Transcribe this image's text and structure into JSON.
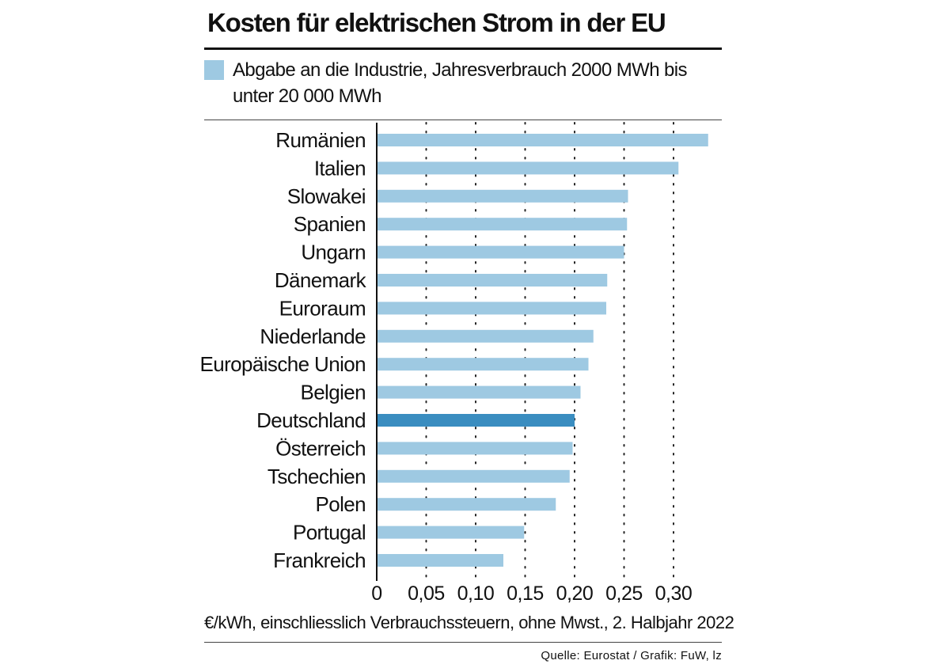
{
  "header": {
    "title": "Kosten für elektrischen Strom in der EU"
  },
  "legend": {
    "label": "Abgabe an die Industrie, Jahresverbrauch 2000 MWh bis unter 20 000 MWh",
    "color": "#9ec9e2"
  },
  "chart_data": {
    "type": "bar",
    "orientation": "horizontal",
    "title": "Kosten für elektrischen Strom in der EU",
    "xlabel": "€/kWh, einschliesslich Verbrauchssteuern, ohne Mwst., 2. Halbjahr 2022",
    "ylabel": "",
    "xlim": [
      0,
      0.35
    ],
    "grid": "vertical dotted",
    "ticks": [
      {
        "value": 0,
        "label": "0"
      },
      {
        "value": 0.05,
        "label": "0,05"
      },
      {
        "value": 0.1,
        "label": "0,10"
      },
      {
        "value": 0.15,
        "label": "0,15"
      },
      {
        "value": 0.2,
        "label": "0,20"
      },
      {
        "value": 0.25,
        "label": "0,25"
      },
      {
        "value": 0.3,
        "label": "0,30"
      }
    ],
    "categories": [
      "Rumänien",
      "Italien",
      "Slowakei",
      "Spanien",
      "Ungarn",
      "Dänemark",
      "Euroraum",
      "Niederlande",
      "Europäische Union",
      "Belgien",
      "Deutschland",
      "Österreich",
      "Tschechien",
      "Polen",
      "Portugal",
      "Frankreich"
    ],
    "values": [
      0.335,
      0.305,
      0.254,
      0.253,
      0.25,
      0.233,
      0.232,
      0.219,
      0.214,
      0.206,
      0.2,
      0.198,
      0.195,
      0.181,
      0.149,
      0.128
    ],
    "highlight": "Deutschland",
    "colors": {
      "bar": "#9ec9e2",
      "highlight": "#3a8dc0"
    }
  },
  "footer": {
    "note": "€/kWh, einschliesslich Verbrauchssteuern, ohne Mwst., 2. Halbjahr 2022",
    "source": "Quelle: Eurostat / Grafik: FuW, lz"
  }
}
